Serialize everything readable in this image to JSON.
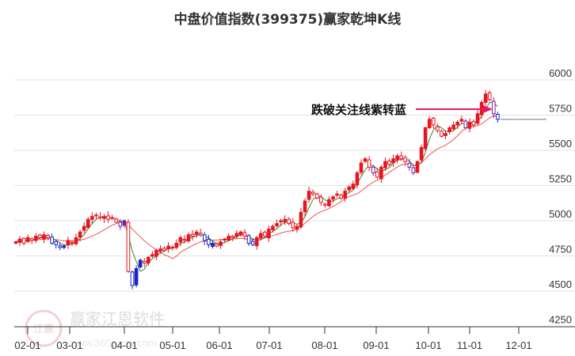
{
  "chart_data": {
    "type": "candlestick",
    "title": "中盘价值指数(399375)赢家乾坤K线",
    "ylim": [
      4250,
      6100
    ],
    "y_ticks": [
      6000,
      5750,
      5500,
      5250,
      5000,
      4750,
      4500,
      4250
    ],
    "x_ticks": [
      "02-01",
      "03-01",
      "04-01",
      "05-01",
      "06-01",
      "07-01",
      "08-01",
      "09-01",
      "10-01",
      "11-01",
      "12-01"
    ],
    "closes": [
      4850,
      4870,
      4840,
      4880,
      4860,
      4890,
      4880,
      4900,
      4880,
      4840,
      4830,
      4810,
      4820,
      4860,
      4840,
      4880,
      4920,
      4960,
      5010,
      5030,
      5040,
      5020,
      5030,
      5010,
      5020,
      4990,
      4960,
      5000,
      4640,
      4540,
      4660,
      4720,
      4700,
      4740,
      4760,
      4790,
      4800,
      4790,
      4820,
      4810,
      4840,
      4880,
      4860,
      4900,
      4890,
      4920,
      4900,
      4860,
      4830,
      4840,
      4820,
      4850,
      4870,
      4890,
      4880,
      4910,
      4920,
      4890,
      4840,
      4830,
      4880,
      4910,
      4890,
      4940,
      4960,
      4980,
      5000,
      5010,
      4980,
      4950,
      4960,
      5060,
      5140,
      5210,
      5190,
      5160,
      5130,
      5110,
      5150,
      5170,
      5190,
      5160,
      5210,
      5240,
      5260,
      5340,
      5410,
      5440,
      5380,
      5340,
      5310,
      5380,
      5420,
      5400,
      5440,
      5460,
      5440,
      5420,
      5380,
      5340,
      5420,
      5520,
      5660,
      5720,
      5680,
      5640,
      5600,
      5620,
      5660,
      5680,
      5700,
      5720,
      5660,
      5700,
      5680,
      5760,
      5840,
      5900,
      5860,
      5760,
      5720
    ],
    "blue_candles": [
      9,
      10,
      11,
      12,
      29,
      30,
      31,
      47,
      48,
      49,
      58,
      59,
      120
    ],
    "purple_candles": [
      26,
      27,
      89,
      98,
      99,
      112,
      119
    ],
    "ma_short_period": 4,
    "ma_long_period": 12,
    "last_price": 5720,
    "annotation": "跌破关注线紫转蓝",
    "colors": {
      "up": "#e8141e",
      "blue": "#1a24c8",
      "purple": "#7b1fa2",
      "ma_short": "#2e8b2e",
      "ma_long": "#f05050",
      "arrow": "#e6186e"
    }
  },
  "watermark": {
    "brand": "赢家江恩软件",
    "url": "www.360gann.com",
    "seal": "江赢恩家"
  }
}
